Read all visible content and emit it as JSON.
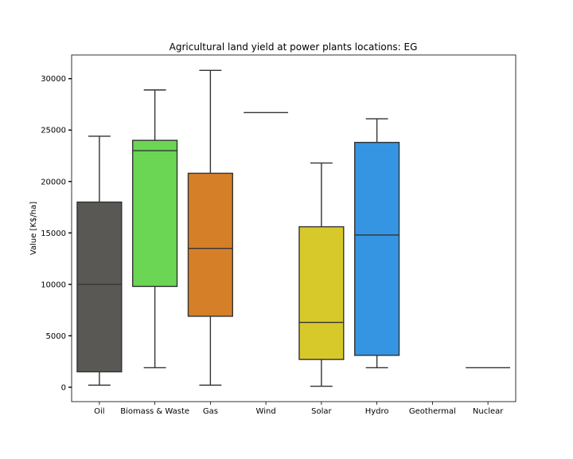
{
  "chart_data": {
    "type": "box",
    "title": "Agricultural land yield at power plants locations: EG",
    "xlabel": "",
    "ylabel": "Value [K$/ha]",
    "ylim": [
      -1400,
      32300
    ],
    "yticks": [
      0,
      5000,
      10000,
      15000,
      20000,
      25000,
      30000
    ],
    "grid": false,
    "categories": [
      "Oil",
      "Biomass & Waste",
      "Gas",
      "Wind",
      "Solar",
      "Hydro",
      "Geothermal",
      "Nuclear"
    ],
    "boxes": [
      {
        "category": "Oil",
        "whisker_low": 200,
        "q1": 1500,
        "median": 10000,
        "q3": 18000,
        "whisker_high": 24400,
        "color": "#5a5855"
      },
      {
        "category": "Biomass & Waste",
        "whisker_low": 1900,
        "q1": 9800,
        "median": 23000,
        "q3": 24000,
        "whisker_high": 28900,
        "color": "#6bd654"
      },
      {
        "category": "Gas",
        "whisker_low": 200,
        "q1": 6900,
        "median": 13500,
        "q3": 20800,
        "whisker_high": 30800,
        "color": "#d57f28"
      },
      {
        "category": "Wind",
        "whisker_low": 26700,
        "q1": 26700,
        "median": 26700,
        "q3": 26700,
        "whisker_high": 26700,
        "color": "#1f77b4"
      },
      {
        "category": "Solar",
        "whisker_low": 100,
        "q1": 2700,
        "median": 6300,
        "q3": 15600,
        "whisker_high": 21800,
        "color": "#d8c92b"
      },
      {
        "category": "Hydro",
        "whisker_low": 1900,
        "q1": 3100,
        "median": 14800,
        "q3": 23800,
        "whisker_high": 26100,
        "color": "#3595e2"
      },
      {
        "category": "Geothermal",
        "whisker_low": null,
        "q1": null,
        "median": null,
        "q3": null,
        "whisker_high": null,
        "color": "#999999"
      },
      {
        "category": "Nuclear",
        "whisker_low": 1900,
        "q1": 1900,
        "median": 1900,
        "q3": 1900,
        "whisker_high": 1900,
        "color": "#888888"
      }
    ]
  }
}
